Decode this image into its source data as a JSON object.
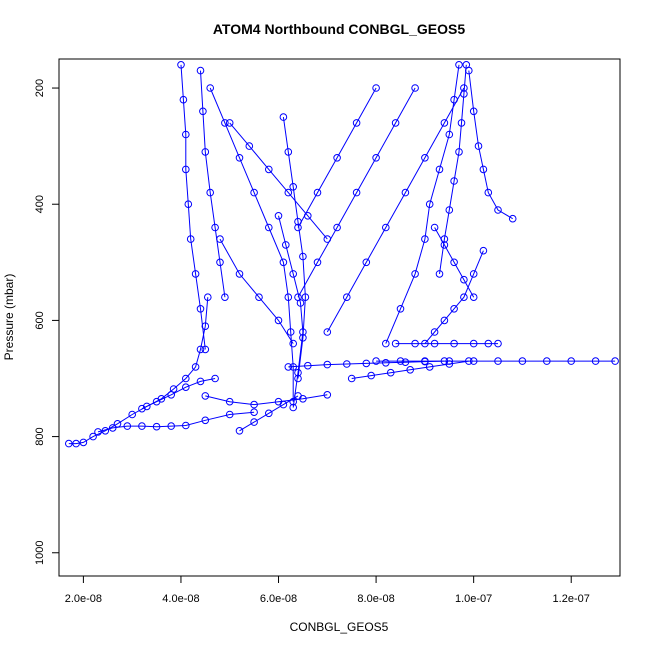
{
  "chart_data": {
    "type": "scatter",
    "title": "ATOM4 Northbound CONBGL_GEOS5",
    "xlabel": "CONBGL_GEOS5",
    "ylabel": "Pressure (mbar)",
    "x_range": [
      1.5e-08,
      1.3e-07
    ],
    "y_range": [
      1040,
      150
    ],
    "y_reversed": true,
    "x_ticks": [
      2e-08,
      4e-08,
      6e-08,
      8e-08,
      1e-07,
      1.2e-07
    ],
    "x_tick_labels": [
      "2.0e-08",
      "4.0e-08",
      "6.0e-08",
      "8.0e-08",
      "1.0e-07",
      "1.2e-07"
    ],
    "y_ticks": [
      200,
      400,
      600,
      800,
      1000
    ],
    "y_tick_labels": [
      "200",
      "400",
      "600",
      "800",
      "1000"
    ],
    "marker": "open-circle",
    "connected_lines": true,
    "color": "#0000ff",
    "series": [
      {
        "x": [
          1.7e-08,
          1.85e-08,
          2e-08,
          2.2e-08,
          2.45e-08,
          2.7e-08,
          3e-08,
          3.3e-08,
          3.6e-08,
          3.85e-08,
          4.1e-08,
          4.3e-08,
          4.4e-08,
          4.5e-08,
          4.55e-08
        ],
        "y": [
          812,
          812,
          810,
          800,
          790,
          778,
          762,
          748,
          735,
          718,
          700,
          680,
          650,
          610,
          560
        ]
      },
      {
        "x": [
          2.3e-08,
          2.6e-08,
          2.9e-08,
          3.2e-08,
          3.5e-08,
          3.8e-08,
          4.1e-08,
          4.5e-08,
          5e-08,
          5.5e-08
        ],
        "y": [
          792,
          785,
          782,
          782,
          783,
          782,
          781,
          772,
          762,
          758
        ]
      },
      {
        "x": [
          4e-08,
          4.05e-08,
          4.1e-08,
          4.1e-08,
          4.15e-08,
          4.2e-08,
          4.3e-08,
          4.4e-08,
          4.5e-08
        ],
        "y": [
          160,
          220,
          280,
          340,
          400,
          460,
          520,
          580,
          650
        ]
      },
      {
        "x": [
          4.4e-08,
          4.45e-08,
          4.5e-08,
          4.6e-08,
          4.7e-08,
          4.8e-08,
          4.9e-08
        ],
        "y": [
          170,
          240,
          310,
          380,
          440,
          500,
          560
        ]
      },
      {
        "x": [
          4.6e-08,
          4.9e-08,
          5.2e-08,
          5.5e-08,
          5.8e-08,
          6.1e-08,
          6.2e-08,
          6.25e-08,
          6.3e-08,
          6.3e-08
        ],
        "y": [
          200,
          260,
          320,
          380,
          440,
          500,
          560,
          620,
          680,
          740
        ]
      },
      {
        "x": [
          6.1e-08,
          6.2e-08,
          6.3e-08,
          6.4e-08,
          6.5e-08,
          6.55e-08,
          6.5e-08,
          6.4e-08
        ],
        "y": [
          250,
          310,
          370,
          430,
          490,
          560,
          630,
          700
        ]
      },
      {
        "x": [
          6e-08,
          6.15e-08,
          6.3e-08,
          6.45e-08,
          6.5e-08,
          6.4e-08,
          6.3e-08
        ],
        "y": [
          420,
          470,
          520,
          570,
          620,
          690,
          750
        ]
      },
      {
        "x": [
          4.5e-08,
          5e-08,
          5.5e-08,
          6e-08,
          6.5e-08,
          7e-08
        ],
        "y": [
          730,
          740,
          745,
          740,
          735,
          728
        ]
      },
      {
        "x": [
          6.2e-08,
          6.6e-08,
          7e-08,
          7.4e-08,
          7.8e-08,
          8.2e-08,
          8.6e-08,
          9e-08,
          9.4e-08
        ],
        "y": [
          680,
          678,
          676,
          675,
          674,
          673,
          672,
          671,
          670
        ]
      },
      {
        "x": [
          8e-08,
          8.5e-08,
          9e-08,
          9.5e-08,
          1e-07,
          1.05e-07,
          1.1e-07,
          1.15e-07,
          1.2e-07,
          1.25e-07,
          1.29e-07
        ],
        "y": [
          670,
          670,
          670,
          670,
          670,
          670,
          670,
          670,
          670,
          670,
          670
        ]
      },
      {
        "x": [
          8.4e-08,
          8.8e-08,
          9.2e-08,
          9.6e-08,
          1e-07,
          1.03e-07,
          1.05e-07
        ],
        "y": [
          640,
          640,
          640,
          640,
          640,
          640,
          640
        ]
      },
      {
        "x": [
          9.7e-08,
          9.6e-08,
          9.5e-08,
          9.3e-08,
          9.1e-08,
          9e-08,
          8.8e-08,
          8.5e-08,
          8.2e-08
        ],
        "y": [
          160,
          220,
          280,
          340,
          400,
          460,
          520,
          580,
          640
        ]
      },
      {
        "x": [
          9.85e-08,
          9.8e-08,
          9.75e-08,
          9.7e-08,
          9.6e-08,
          9.5e-08,
          9.4e-08,
          9.3e-08
        ],
        "y": [
          160,
          210,
          260,
          310,
          360,
          410,
          460,
          520
        ]
      },
      {
        "x": [
          9.9e-08,
          1e-07,
          1.01e-07,
          1.02e-07,
          1.03e-07,
          1.05e-07,
          1.08e-07
        ],
        "y": [
          170,
          240,
          300,
          340,
          380,
          410,
          425
        ]
      },
      {
        "x": [
          1.02e-07,
          1e-07,
          9.8e-08,
          9.6e-08,
          9.4e-08,
          9.2e-08,
          9e-08
        ],
        "y": [
          480,
          520,
          560,
          580,
          600,
          620,
          640
        ]
      },
      {
        "x": [
          7e-08,
          7.4e-08,
          7.8e-08,
          8.2e-08,
          8.6e-08,
          9e-08,
          9.4e-08,
          9.8e-08
        ],
        "y": [
          620,
          560,
          500,
          440,
          380,
          320,
          260,
          200
        ]
      },
      {
        "x": [
          6.4e-08,
          6.8e-08,
          7.2e-08,
          7.6e-08,
          8e-08,
          8.4e-08,
          8.8e-08
        ],
        "y": [
          560,
          500,
          440,
          380,
          320,
          260,
          200
        ]
      },
      {
        "x": [
          5e-08,
          5.4e-08,
          5.8e-08,
          6.2e-08,
          6.6e-08,
          7e-08
        ],
        "y": [
          260,
          300,
          340,
          380,
          420,
          460
        ]
      },
      {
        "x": [
          8e-08,
          7.6e-08,
          7.2e-08,
          6.8e-08,
          6.4e-08
        ],
        "y": [
          200,
          260,
          320,
          380,
          440
        ]
      },
      {
        "x": [
          4.8e-08,
          5.2e-08,
          5.6e-08,
          6e-08,
          6.3e-08
        ],
        "y": [
          460,
          520,
          560,
          600,
          640
        ]
      },
      {
        "x": [
          7.5e-08,
          7.9e-08,
          8.3e-08,
          8.7e-08,
          9.1e-08,
          9.5e-08,
          9.9e-08
        ],
        "y": [
          700,
          695,
          690,
          685,
          680,
          675,
          670
        ]
      },
      {
        "x": [
          5.2e-08,
          5.5e-08,
          5.8e-08,
          6.1e-08,
          6.4e-08
        ],
        "y": [
          790,
          775,
          760,
          745,
          730
        ]
      },
      {
        "x": [
          3.2e-08,
          3.5e-08,
          3.8e-08,
          4.1e-08,
          4.4e-08,
          4.7e-08
        ],
        "y": [
          752,
          740,
          728,
          715,
          705,
          700
        ]
      },
      {
        "x": [
          9.2e-08,
          9.4e-08,
          9.6e-08,
          9.8e-08,
          1e-07
        ],
        "y": [
          440,
          470,
          500,
          530,
          560
        ]
      }
    ]
  }
}
